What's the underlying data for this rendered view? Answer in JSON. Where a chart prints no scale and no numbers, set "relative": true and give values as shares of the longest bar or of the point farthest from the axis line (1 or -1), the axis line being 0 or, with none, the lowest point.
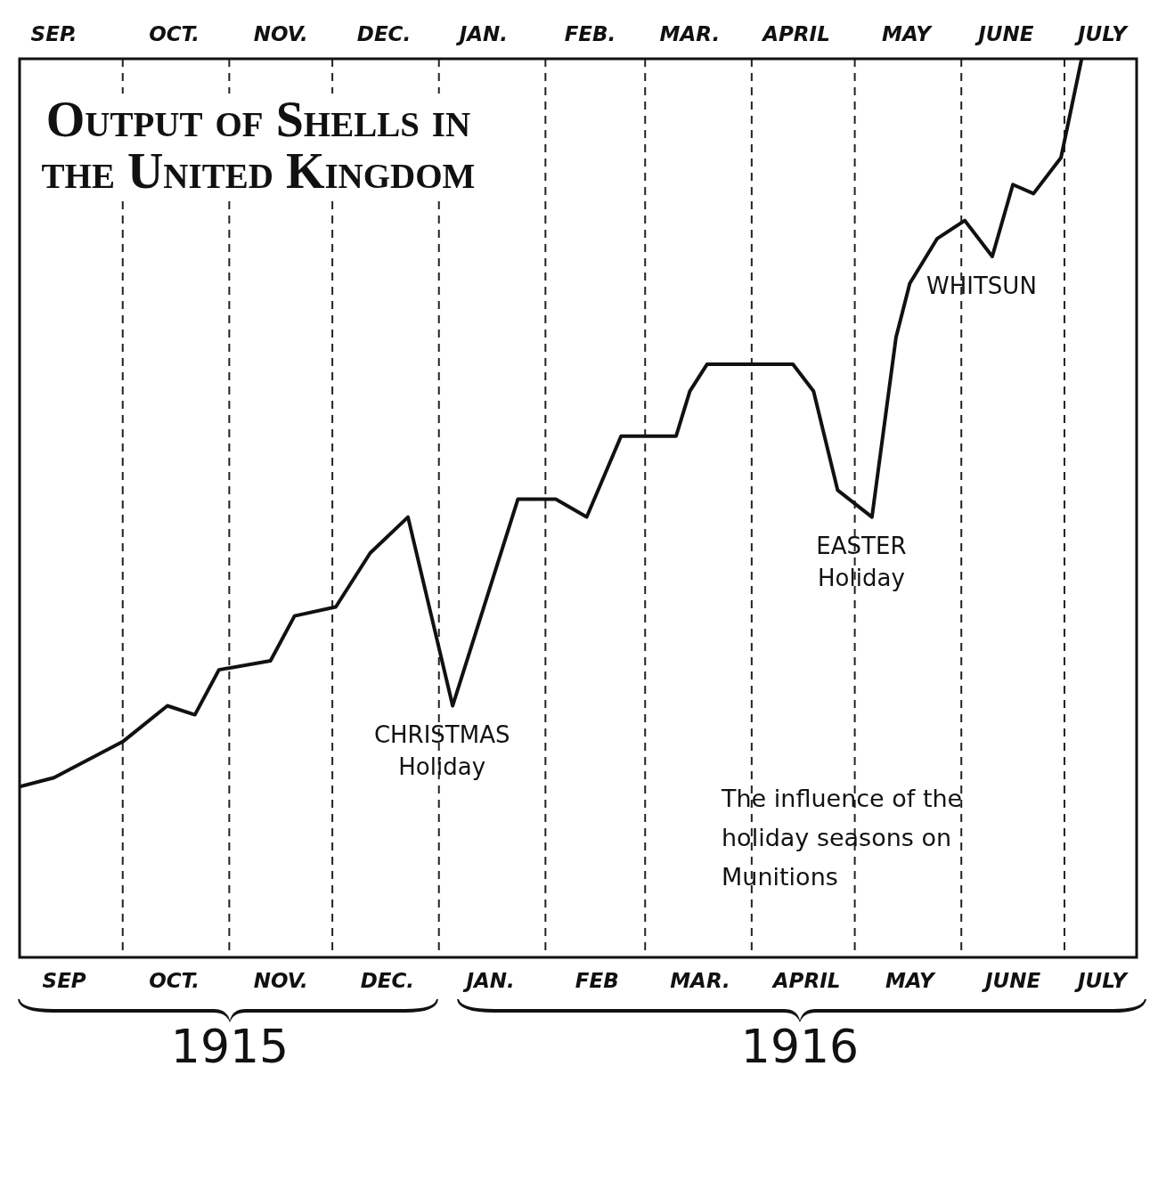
{
  "chart_data": {
    "type": "line",
    "title": "Output of Shells in the United Kingdom",
    "relative": true,
    "x": [
      "1915-09-01",
      "1915-09-11",
      "1915-09-21",
      "1915-10-01",
      "1915-10-14",
      "1915-10-22",
      "1915-10-29",
      "1915-11-13",
      "1915-11-20",
      "1915-12-02",
      "1915-12-12",
      "1915-12-23",
      "1916-01-05",
      "1916-01-24",
      "1916-02-04",
      "1916-02-13",
      "1916-02-23",
      "1916-03-10",
      "1916-03-14",
      "1916-03-19",
      "1916-04-13",
      "1916-04-19",
      "1916-04-26",
      "1916-05-06",
      "1916-05-13",
      "1916-05-17",
      "1916-05-25",
      "1916-06-02",
      "1916-06-10",
      "1916-06-16",
      "1916-06-22",
      "1916-06-30",
      "1916-07-06"
    ],
    "values": [
      0.19,
      0.2,
      0.22,
      0.24,
      0.28,
      0.27,
      0.32,
      0.33,
      0.38,
      0.39,
      0.45,
      0.49,
      0.28,
      0.51,
      0.51,
      0.49,
      0.58,
      0.58,
      0.63,
      0.66,
      0.66,
      0.63,
      0.52,
      0.49,
      0.69,
      0.75,
      0.8,
      0.82,
      0.78,
      0.86,
      0.85,
      0.89,
      1
    ],
    "color": "#111111",
    "xlim": [
      "1915-09-01",
      "1916-07-22"
    ],
    "xticks": [
      {
        "value": "1915-09-14",
        "label": "SEP"
      },
      {
        "value": "1915-10-16",
        "label": "OCT."
      },
      {
        "value": "1915-11-16",
        "label": "NOV."
      },
      {
        "value": "1915-12-17",
        "label": "DEC."
      },
      {
        "value": "1916-01-16",
        "label": "JAN."
      },
      {
        "value": "1916-02-16",
        "label": "FEB"
      },
      {
        "value": "1916-03-17",
        "label": "MAR."
      },
      {
        "value": "1916-04-17",
        "label": "APRIL"
      },
      {
        "value": "1916-05-17",
        "label": "MAY"
      },
      {
        "value": "1916-06-16",
        "label": "JUNE"
      },
      {
        "value": "1916-07-12",
        "label": "JULY"
      }
    ],
    "x2lim": [
      "1915-09-01",
      "1916-07-22"
    ],
    "x2ticks": [
      {
        "value": "1915-09-11",
        "label": "SEP."
      },
      {
        "value": "1915-10-16",
        "label": "OCT."
      },
      {
        "value": "1915-11-16",
        "label": "NOV."
      },
      {
        "value": "1915-12-16",
        "label": "DEC."
      },
      {
        "value": "1916-01-14",
        "label": "JAN."
      },
      {
        "value": "1916-02-14",
        "label": "FEB."
      },
      {
        "value": "1916-03-14",
        "label": "MAR."
      },
      {
        "value": "1916-04-14",
        "label": "APRIL"
      },
      {
        "value": "1916-05-16",
        "label": "MAY"
      },
      {
        "value": "1916-06-14",
        "label": "JUNE"
      },
      {
        "value": "1916-07-12",
        "label": "JULY"
      }
    ],
    "ref_lines": [
      {
        "axis": "x",
        "value": "1915-10-01",
        "line_style": "dashed"
      },
      {
        "axis": "x",
        "value": "1915-11-01",
        "line_style": "dashed"
      },
      {
        "axis": "x",
        "value": "1915-12-01",
        "line_style": "dashed"
      },
      {
        "axis": "x",
        "value": "1916-01-01",
        "line_style": "dashed"
      },
      {
        "axis": "x",
        "value": "1916-02-01",
        "line_style": "dashed"
      },
      {
        "axis": "x",
        "value": "1916-03-01",
        "line_style": "dashed"
      },
      {
        "axis": "x",
        "value": "1916-04-01",
        "line_style": "dashed"
      },
      {
        "axis": "x",
        "value": "1916-05-01",
        "line_style": "dashed"
      },
      {
        "axis": "x",
        "value": "1916-06-01",
        "line_style": "dashed"
      },
      {
        "axis": "x",
        "value": "1916-07-01",
        "line_style": "dashed"
      }
    ],
    "annotations": [
      {
        "text": "CHRISTMAS\nHoliday",
        "x": "1916-01-05",
        "y": 0.28
      },
      {
        "text": "EASTER\nHoliday",
        "x": "1916-05-06",
        "y": 0.49
      },
      {
        "text": "WHITSUN",
        "x": "1916-06-10",
        "y": 0.78
      },
      "The influence of the holiday seasons on Munitions",
      "1915",
      "1916"
    ],
    "grid": false,
    "legend": false
  }
}
